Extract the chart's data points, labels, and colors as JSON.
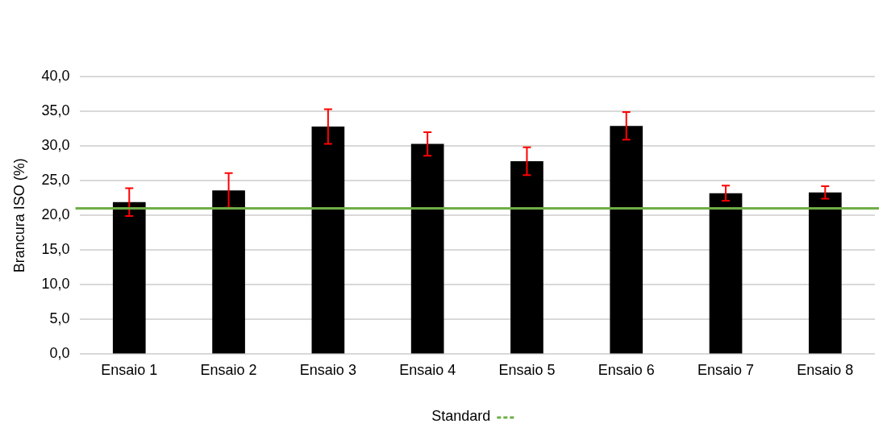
{
  "chart_data": {
    "type": "bar",
    "ylabel": "Brancura ISO (%)",
    "categories": [
      "Ensaio 1",
      "Ensaio 2",
      "Ensaio 3",
      "Ensaio 4",
      "Ensaio 5",
      "Ensaio 6",
      "Ensaio 7",
      "Ensaio 8"
    ],
    "values": [
      21.9,
      23.6,
      32.8,
      30.3,
      27.8,
      32.9,
      23.2,
      23.3
    ],
    "errors": [
      2.0,
      2.5,
      2.5,
      1.7,
      2.0,
      2.0,
      1.1,
      0.9
    ],
    "color": "#000000",
    "ylim": [
      0,
      40
    ],
    "yticks": [
      {
        "value": 0,
        "label": "0,0"
      },
      {
        "value": 5,
        "label": "5,0"
      },
      {
        "value": 10,
        "label": "10,0"
      },
      {
        "value": 15,
        "label": "15,0"
      },
      {
        "value": 20,
        "label": "20,0"
      },
      {
        "value": 25,
        "label": "25,0"
      },
      {
        "value": 30,
        "label": "30,0"
      },
      {
        "value": 35,
        "label": "35,0"
      },
      {
        "value": 40,
        "label": "40,0"
      }
    ],
    "ref_lines": [
      {
        "axis": "y",
        "value": 21.0,
        "label": "Standard",
        "color": "#70ad47"
      }
    ],
    "grid": "y",
    "legend": "bottom"
  }
}
